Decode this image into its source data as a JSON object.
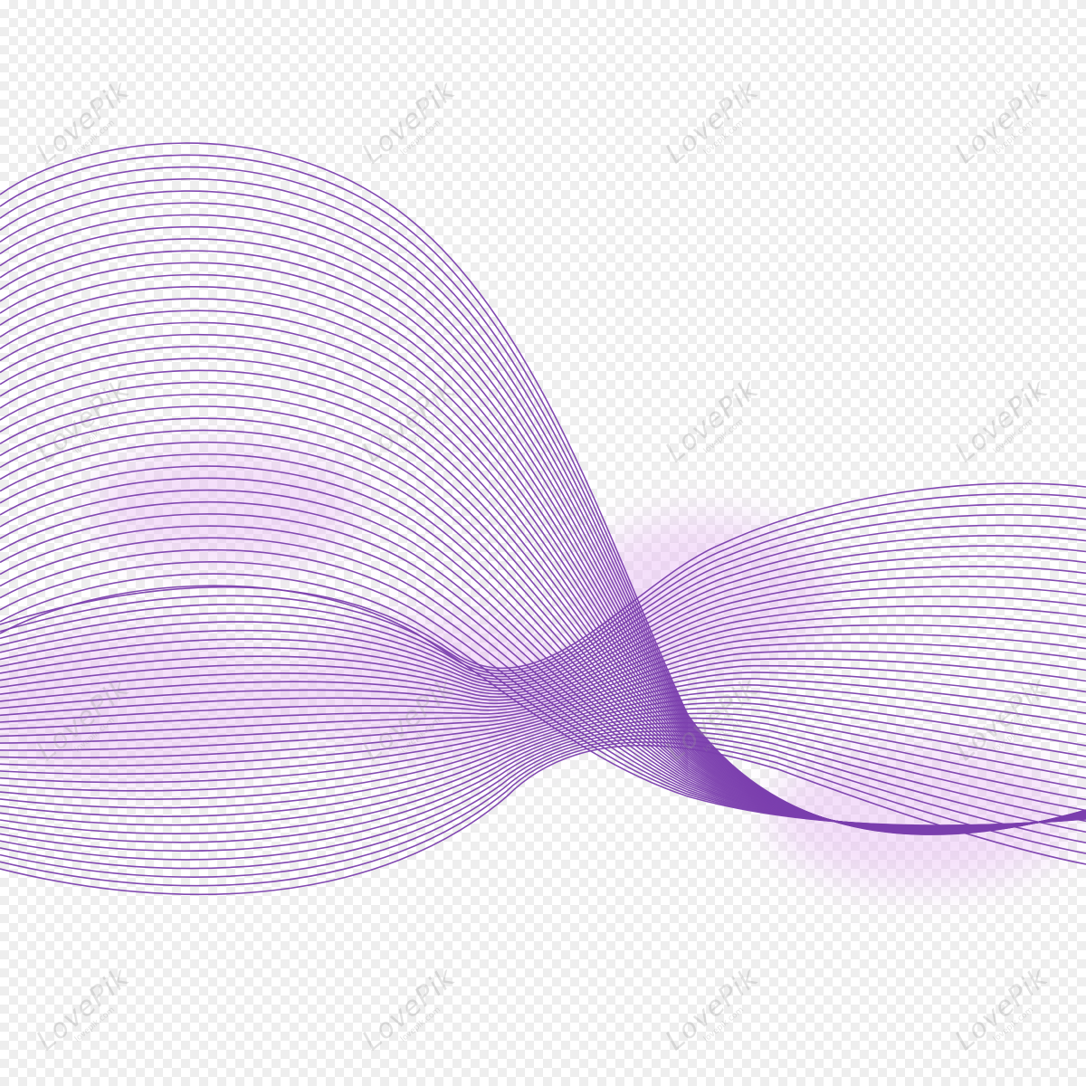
{
  "watermark": {
    "text": "LovePik",
    "subtext": "lovepik.com"
  },
  "colors": {
    "line": "#7b3fae",
    "glow": "#e7b8f3",
    "checker_light": "#ffffff",
    "checker_dark": "#eeeeee",
    "watermark": "#969696"
  }
}
